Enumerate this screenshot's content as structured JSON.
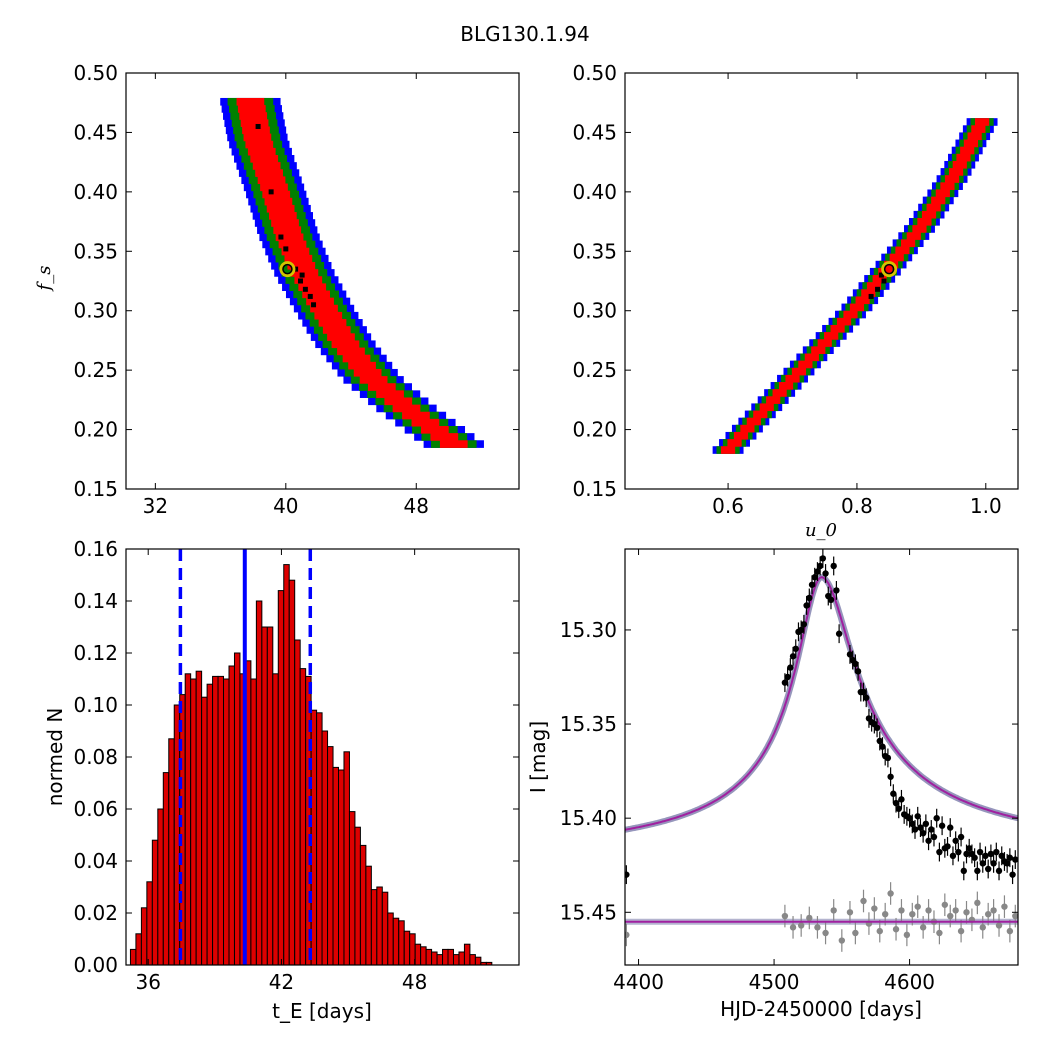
{
  "figure": {
    "title": "BLG130.1.94",
    "colors": {
      "density_inner": "#ff0000",
      "density_mid": "#008000",
      "density_outer": "#0000ff",
      "best_points": "#000000",
      "best_marker_ring": "#d4c400",
      "hist_bar": "#dd0000",
      "hist_edge": "#000000",
      "vline": "#0000ff",
      "model_line": "#a020a0",
      "model_band": "#6a6aa0",
      "data_points": "#000000",
      "residual_points": "#888888",
      "residual_line": "#a020a0"
    }
  },
  "chart_data": [
    {
      "id": "panel-fs-vs-tE",
      "type": "heatmap",
      "title": "",
      "xlabel": "",
      "ylabel": "f_s",
      "xlim": [
        30.2,
        54.3
      ],
      "ylim": [
        0.15,
        0.5
      ],
      "xticks": [
        32,
        40,
        48
      ],
      "yticks": [
        0.15,
        0.2,
        0.25,
        0.3,
        0.35,
        0.4,
        0.45,
        0.5
      ],
      "ytick_labels": [
        "0.15",
        "0.20",
        "0.25",
        "0.30",
        "0.35",
        "0.40",
        "0.45",
        "0.50"
      ],
      "ridge": [
        [
          37.8,
          0.475
        ],
        [
          38.3,
          0.44
        ],
        [
          39.3,
          0.4
        ],
        [
          40.2,
          0.36
        ],
        [
          41.1,
          0.33
        ],
        [
          42.3,
          0.3
        ],
        [
          43.6,
          0.27
        ],
        [
          45.3,
          0.24
        ],
        [
          47.4,
          0.215
        ],
        [
          50.3,
          0.185
        ]
      ],
      "band_halfwidths": {
        "inner": 0.85,
        "mid": 1.4,
        "outer": 1.85
      },
      "best_points": [
        [
          38.3,
          0.455
        ],
        [
          39.1,
          0.4
        ],
        [
          39.7,
          0.362
        ],
        [
          40.0,
          0.352
        ],
        [
          40.6,
          0.335
        ],
        [
          40.9,
          0.325
        ],
        [
          41.2,
          0.318
        ],
        [
          41.5,
          0.312
        ],
        [
          41.7,
          0.305
        ],
        [
          41.0,
          0.33
        ]
      ],
      "best_fit_marker": [
        40.1,
        0.335
      ]
    },
    {
      "id": "panel-fs-vs-u0",
      "type": "heatmap",
      "title": "",
      "xlabel": "u_0",
      "ylabel": "",
      "xlim": [
        0.44,
        1.05
      ],
      "ylim": [
        0.15,
        0.5
      ],
      "xticks": [
        0.6,
        0.8,
        1.0
      ],
      "xtick_labels": [
        "0.6",
        "0.8",
        "1.0"
      ],
      "yticks": [
        0.15,
        0.2,
        0.25,
        0.3,
        0.35,
        0.4,
        0.45,
        0.5
      ],
      "ytick_labels": [
        "0.15",
        "0.20",
        "0.25",
        "0.30",
        "0.35",
        "0.40",
        "0.45",
        "0.50"
      ],
      "ridge": [
        [
          0.6,
          0.18
        ],
        [
          0.65,
          0.21
        ],
        [
          0.7,
          0.24
        ],
        [
          0.75,
          0.27
        ],
        [
          0.8,
          0.3
        ],
        [
          0.85,
          0.334
        ],
        [
          0.9,
          0.368
        ],
        [
          0.95,
          0.41
        ],
        [
          1.0,
          0.462
        ]
      ],
      "band_halfwidths": {
        "inner": 0.011,
        "mid": 0.018,
        "outer": 0.024
      },
      "best_points": [
        [
          0.822,
          0.312
        ],
        [
          0.832,
          0.318
        ],
        [
          0.842,
          0.325
        ],
        [
          0.838,
          0.33
        ]
      ],
      "best_fit_marker": [
        0.85,
        0.335
      ]
    },
    {
      "id": "panel-tE-histogram",
      "type": "bar",
      "title": "",
      "xlabel": "t_E [days]",
      "ylabel": "normed N",
      "xlim": [
        35.0,
        52.7
      ],
      "ylim": [
        0.0,
        0.16
      ],
      "xticks": [
        36,
        42,
        48
      ],
      "yticks": [
        0.0,
        0.02,
        0.04,
        0.06,
        0.08,
        0.1,
        0.12,
        0.14,
        0.16
      ],
      "ytick_labels": [
        "0.00",
        "0.02",
        "0.04",
        "0.06",
        "0.08",
        "0.10",
        "0.12",
        "0.14",
        "0.16"
      ],
      "bin_start": 35.2,
      "bin_width": 0.2466,
      "values": [
        0.006,
        0.012,
        0.022,
        0.032,
        0.048,
        0.06,
        0.074,
        0.087,
        0.1,
        0.104,
        0.112,
        0.11,
        0.113,
        0.103,
        0.108,
        0.111,
        0.111,
        0.11,
        0.115,
        0.12,
        0.112,
        0.117,
        0.11,
        0.14,
        0.13,
        0.13,
        0.112,
        0.144,
        0.154,
        0.148,
        0.125,
        0.114,
        0.111,
        0.098,
        0.097,
        0.09,
        0.084,
        0.076,
        0.075,
        0.082,
        0.059,
        0.053,
        0.046,
        0.038,
        0.029,
        0.03,
        0.028,
        0.02,
        0.018,
        0.017,
        0.013,
        0.012,
        0.008,
        0.007,
        0.006,
        0.005,
        0.004,
        0.006,
        0.006,
        0.004,
        0.005,
        0.008,
        0.004,
        0.003,
        0.001,
        0.001
      ],
      "vlines_dashed": [
        37.45,
        43.3
      ],
      "vline_solid": 40.35
    },
    {
      "id": "panel-lightcurve",
      "type": "scatter",
      "title": "",
      "xlabel": "HJD-2450000 [days]",
      "ylabel": "I [mag]",
      "xlim": [
        4390,
        4680
      ],
      "ylim": [
        15.478,
        15.257
      ],
      "xticks": [
        4400,
        4500,
        4600
      ],
      "yticks": [
        15.3,
        15.35,
        15.4,
        15.45
      ],
      "ytick_labels": [
        "15.30",
        "15.35",
        "15.40",
        "15.45"
      ],
      "model": {
        "baseline": 15.425,
        "peak_time": 4535,
        "peak_mag": 15.272,
        "rise_scale": 18,
        "fall_scale": 24
      },
      "series": [
        {
          "kind": "data",
          "points": [
            [
              4391,
              15.43
            ],
            [
              4508,
              15.328
            ],
            [
              4510,
              15.325
            ],
            [
              4512,
              15.32
            ],
            [
              4514,
              15.314
            ],
            [
              4516,
              15.31
            ],
            [
              4518,
              15.301
            ],
            [
              4520,
              15.3
            ],
            [
              4522,
              15.297
            ],
            [
              4524,
              15.287
            ],
            [
              4526,
              15.283
            ],
            [
              4528,
              15.276
            ],
            [
              4530,
              15.272
            ],
            [
              4532,
              15.269
            ],
            [
              4534,
              15.266
            ],
            [
              4536,
              15.262
            ],
            [
              4538,
              15.27
            ],
            [
              4540,
              15.282
            ],
            [
              4542,
              15.284
            ],
            [
              4544,
              15.266
            ],
            [
              4546,
              15.279
            ],
            [
              4548,
              15.302
            ],
            [
              4556,
              15.313
            ],
            [
              4558,
              15.316
            ],
            [
              4560,
              15.318
            ],
            [
              4562,
              15.322
            ],
            [
              4564,
              15.333
            ],
            [
              4566,
              15.333
            ],
            [
              4568,
              15.336
            ],
            [
              4570,
              15.347
            ],
            [
              4572,
              15.349
            ],
            [
              4574,
              15.35
            ],
            [
              4576,
              15.352
            ],
            [
              4578,
              15.359
            ],
            [
              4580,
              15.362
            ],
            [
              4582,
              15.367
            ],
            [
              4584,
              15.368
            ],
            [
              4586,
              15.378
            ],
            [
              4588,
              15.387
            ],
            [
              4590,
              15.392
            ],
            [
              4592,
              15.395
            ],
            [
              4594,
              15.39
            ],
            [
              4596,
              15.398
            ],
            [
              4598,
              15.399
            ],
            [
              4600,
              15.4
            ],
            [
              4602,
              15.403
            ],
            [
              4604,
              15.406
            ],
            [
              4606,
              15.399
            ],
            [
              4608,
              15.405
            ],
            [
              4610,
              15.408
            ],
            [
              4612,
              15.403
            ],
            [
              4614,
              15.412
            ],
            [
              4616,
              15.406
            ],
            [
              4618,
              15.41
            ],
            [
              4620,
              15.4
            ],
            [
              4622,
              15.418
            ],
            [
              4624,
              15.404
            ],
            [
              4626,
              15.416
            ],
            [
              4628,
              15.415
            ],
            [
              4630,
              15.405
            ],
            [
              4632,
              15.42
            ],
            [
              4634,
              15.412
            ],
            [
              4636,
              15.418
            ],
            [
              4638,
              15.41
            ],
            [
              4640,
              15.428
            ],
            [
              4642,
              15.419
            ],
            [
              4644,
              15.416
            ],
            [
              4646,
              15.419
            ],
            [
              4648,
              15.421
            ],
            [
              4650,
              15.428
            ],
            [
              4652,
              15.418
            ],
            [
              4654,
              15.424
            ],
            [
              4656,
              15.42
            ],
            [
              4658,
              15.427
            ],
            [
              4660,
              15.419
            ],
            [
              4662,
              15.424
            ],
            [
              4664,
              15.418
            ],
            [
              4666,
              15.428
            ],
            [
              4668,
              15.42
            ],
            [
              4670,
              15.423
            ],
            [
              4672,
              15.424
            ],
            [
              4674,
              15.421
            ],
            [
              4676,
              15.43
            ],
            [
              4678,
              15.422
            ]
          ]
        },
        {
          "kind": "residuals",
          "baseline": 15.455,
          "points": [
            [
              4391,
              15.462
            ],
            [
              4508,
              15.452
            ],
            [
              4514,
              15.458
            ],
            [
              4520,
              15.457
            ],
            [
              4526,
              15.453
            ],
            [
              4532,
              15.458
            ],
            [
              4538,
              15.461
            ],
            [
              4544,
              15.449
            ],
            [
              4550,
              15.465
            ],
            [
              4556,
              15.45
            ],
            [
              4560,
              15.461
            ],
            [
              4566,
              15.444
            ],
            [
              4570,
              15.456
            ],
            [
              4574,
              15.448
            ],
            [
              4578,
              15.46
            ],
            [
              4582,
              15.451
            ],
            [
              4586,
              15.44
            ],
            [
              4590,
              15.459
            ],
            [
              4594,
              15.449
            ],
            [
              4598,
              15.462
            ],
            [
              4602,
              15.451
            ],
            [
              4606,
              15.447
            ],
            [
              4610,
              15.458
            ],
            [
              4614,
              15.449
            ],
            [
              4618,
              15.455
            ],
            [
              4622,
              15.461
            ],
            [
              4626,
              15.446
            ],
            [
              4630,
              15.452
            ],
            [
              4634,
              15.449
            ],
            [
              4638,
              15.46
            ],
            [
              4642,
              15.45
            ],
            [
              4646,
              15.454
            ],
            [
              4650,
              15.445
            ],
            [
              4654,
              15.458
            ],
            [
              4658,
              15.451
            ],
            [
              4662,
              15.449
            ],
            [
              4666,
              15.457
            ],
            [
              4670,
              15.447
            ],
            [
              4674,
              15.46
            ],
            [
              4678,
              15.452
            ]
          ]
        }
      ]
    }
  ]
}
